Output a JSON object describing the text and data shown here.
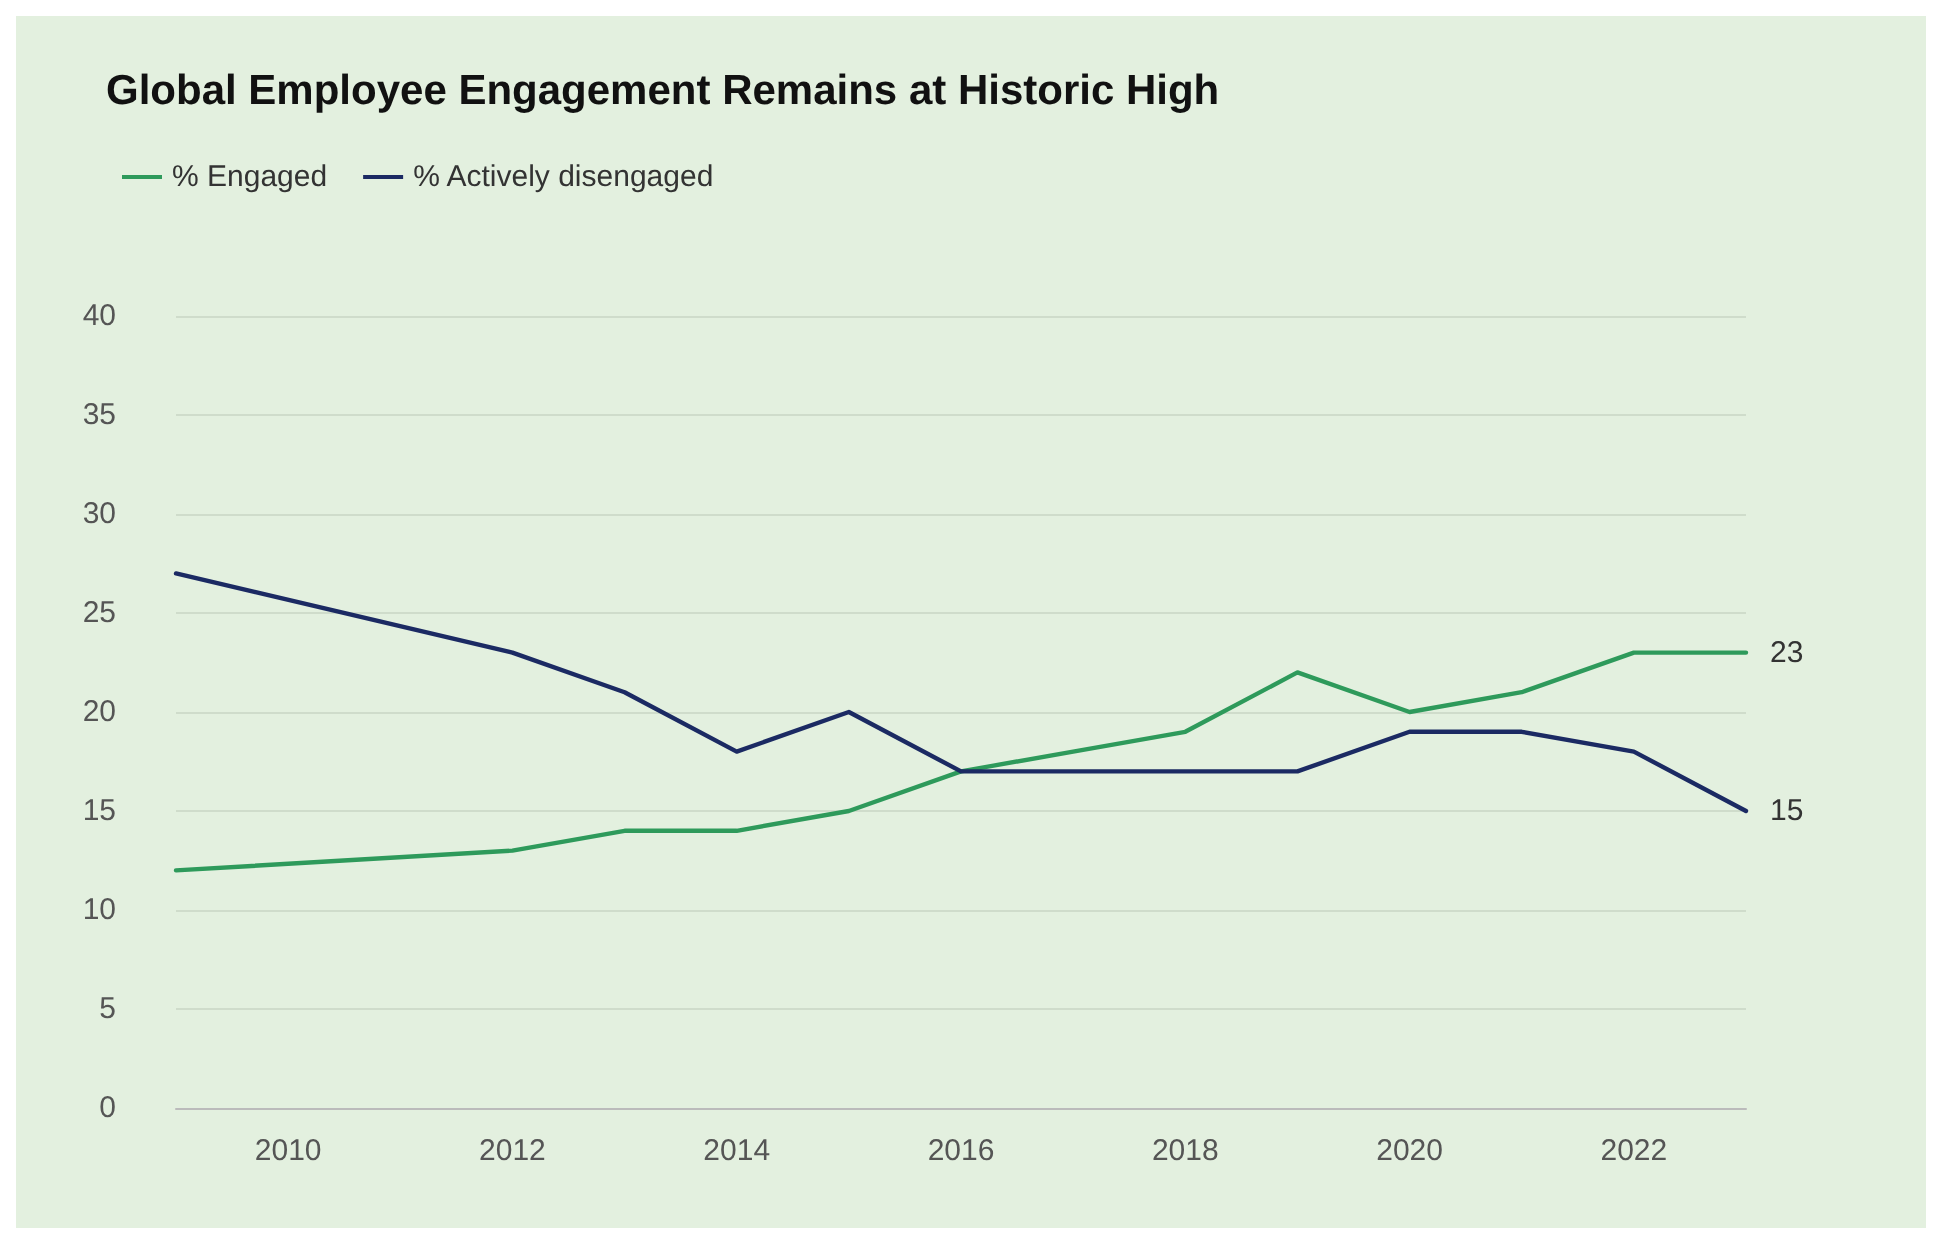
{
  "chart_data": {
    "type": "line",
    "title": "Global Employee Engagement Remains at Historic High",
    "x": [
      2009,
      2012,
      2013,
      2014,
      2015,
      2016,
      2017,
      2018,
      2019,
      2020,
      2021,
      2022,
      2023
    ],
    "series": [
      {
        "name": "% Engaged",
        "color": "#2e9a5b",
        "values": [
          12,
          13,
          14,
          14,
          15,
          17,
          18,
          19,
          22,
          20,
          21,
          23,
          23
        ],
        "value_labels": [
          null,
          null,
          null,
          null,
          null,
          null,
          null,
          null,
          null,
          null,
          null,
          null,
          "23"
        ]
      },
      {
        "name": "% Actively disengaged",
        "color": "#1b2a63",
        "values": [
          27,
          23,
          21,
          18,
          20,
          17,
          17,
          17,
          17,
          19,
          19,
          18,
          15
        ],
        "value_labels": [
          null,
          null,
          null,
          null,
          null,
          null,
          null,
          null,
          null,
          null,
          null,
          null,
          "15"
        ]
      }
    ],
    "xlim": [
      2009,
      2023
    ],
    "xticks": [
      2010,
      2012,
      2014,
      2016,
      2018,
      2020,
      2022
    ],
    "ylim": [
      0,
      40
    ],
    "yticks": [
      0,
      5,
      10,
      15,
      20,
      25,
      30,
      35,
      40
    ],
    "grid": "y",
    "legend": "top left",
    "marker": "none",
    "line_style": "solid"
  }
}
